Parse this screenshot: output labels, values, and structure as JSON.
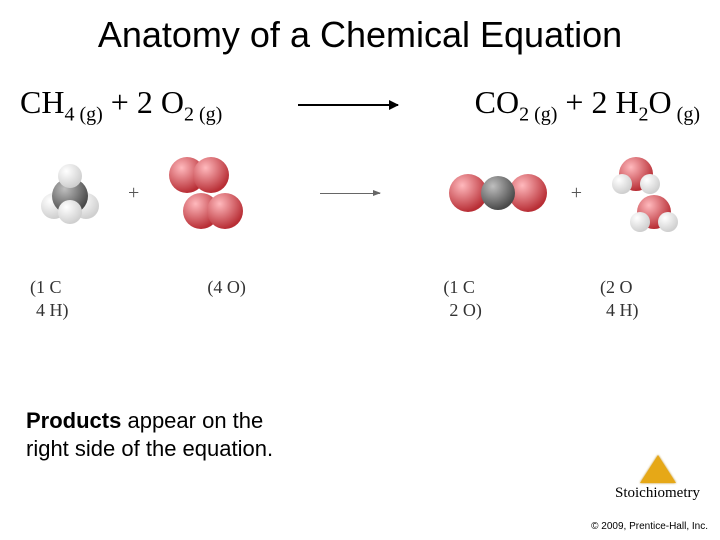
{
  "title": "Anatomy of a Chemical Equation",
  "equation": {
    "lhs": {
      "ch4": {
        "formula_main": "CH",
        "formula_sub": "4 (g)"
      },
      "plus": " + 2 ",
      "o2": {
        "formula_main": "O",
        "formula_sub": "2 (g)"
      }
    },
    "rhs": {
      "co2": {
        "formula_main": "CO",
        "formula_sub": "2 (g)"
      },
      "plus": " + 2 ",
      "h2o": {
        "formula_main1": "H",
        "formula_sub1": "2",
        "formula_main2": "O",
        "formula_sub2": " (g)"
      }
    }
  },
  "molecules": {
    "plus": "+",
    "colors": {
      "carbon_light": "#6b6b6b",
      "carbon_dark": "#2a2a2a",
      "hydrogen_light": "#f5f5f5",
      "hydrogen_dark": "#cfcfcf",
      "oxygen_light": "#ff9aa0",
      "oxygen_dark": "#b82e35"
    }
  },
  "atom_counts": {
    "ch4": {
      "l1": "1 C",
      "l2": "4 H"
    },
    "o2": {
      "l1": "(4 O)"
    },
    "co2": {
      "l1": "1 C",
      "l2": "2 O"
    },
    "h2o": {
      "l1": "2 O",
      "l2": "4 H"
    }
  },
  "caption": {
    "bold": "Products",
    "rest": " appear on the\nright side of the equation."
  },
  "badge": {
    "label": "Stoichiometry"
  },
  "copyright": "© 2009, Prentice-Hall, Inc."
}
